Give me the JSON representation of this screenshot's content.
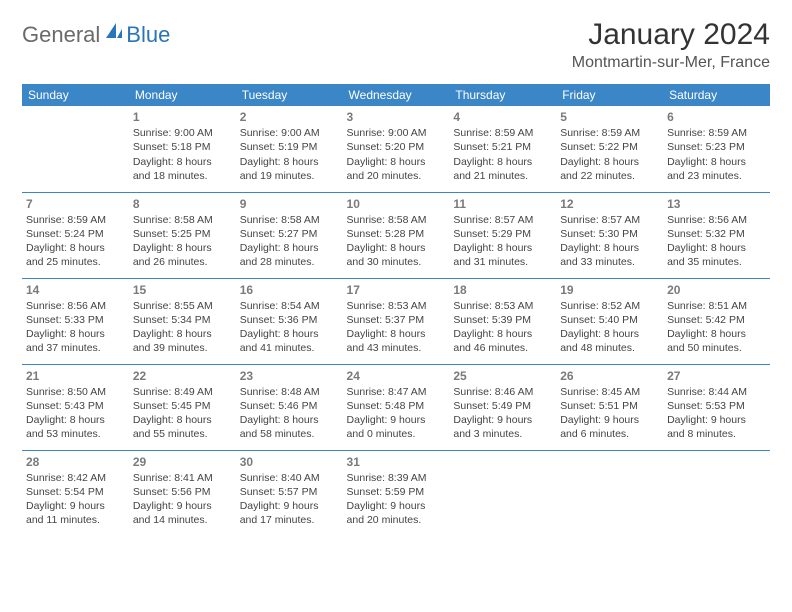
{
  "logo": {
    "general": "General",
    "blue": "Blue"
  },
  "title": "January 2024",
  "location": "Montmartin-sur-Mer, France",
  "colors": {
    "header_bg": "#3b86c6",
    "header_text": "#ffffff",
    "border": "#3b86c6",
    "daynum": "#7a7a7a",
    "body_text": "#444444",
    "logo_gray": "#6a6a6a",
    "logo_blue": "#2a74b8"
  },
  "day_headers": [
    "Sunday",
    "Monday",
    "Tuesday",
    "Wednesday",
    "Thursday",
    "Friday",
    "Saturday"
  ],
  "weeks": [
    [
      null,
      {
        "n": "1",
        "sr": "Sunrise: 9:00 AM",
        "ss": "Sunset: 5:18 PM",
        "d1": "Daylight: 8 hours",
        "d2": "and 18 minutes."
      },
      {
        "n": "2",
        "sr": "Sunrise: 9:00 AM",
        "ss": "Sunset: 5:19 PM",
        "d1": "Daylight: 8 hours",
        "d2": "and 19 minutes."
      },
      {
        "n": "3",
        "sr": "Sunrise: 9:00 AM",
        "ss": "Sunset: 5:20 PM",
        "d1": "Daylight: 8 hours",
        "d2": "and 20 minutes."
      },
      {
        "n": "4",
        "sr": "Sunrise: 8:59 AM",
        "ss": "Sunset: 5:21 PM",
        "d1": "Daylight: 8 hours",
        "d2": "and 21 minutes."
      },
      {
        "n": "5",
        "sr": "Sunrise: 8:59 AM",
        "ss": "Sunset: 5:22 PM",
        "d1": "Daylight: 8 hours",
        "d2": "and 22 minutes."
      },
      {
        "n": "6",
        "sr": "Sunrise: 8:59 AM",
        "ss": "Sunset: 5:23 PM",
        "d1": "Daylight: 8 hours",
        "d2": "and 23 minutes."
      }
    ],
    [
      {
        "n": "7",
        "sr": "Sunrise: 8:59 AM",
        "ss": "Sunset: 5:24 PM",
        "d1": "Daylight: 8 hours",
        "d2": "and 25 minutes."
      },
      {
        "n": "8",
        "sr": "Sunrise: 8:58 AM",
        "ss": "Sunset: 5:25 PM",
        "d1": "Daylight: 8 hours",
        "d2": "and 26 minutes."
      },
      {
        "n": "9",
        "sr": "Sunrise: 8:58 AM",
        "ss": "Sunset: 5:27 PM",
        "d1": "Daylight: 8 hours",
        "d2": "and 28 minutes."
      },
      {
        "n": "10",
        "sr": "Sunrise: 8:58 AM",
        "ss": "Sunset: 5:28 PM",
        "d1": "Daylight: 8 hours",
        "d2": "and 30 minutes."
      },
      {
        "n": "11",
        "sr": "Sunrise: 8:57 AM",
        "ss": "Sunset: 5:29 PM",
        "d1": "Daylight: 8 hours",
        "d2": "and 31 minutes."
      },
      {
        "n": "12",
        "sr": "Sunrise: 8:57 AM",
        "ss": "Sunset: 5:30 PM",
        "d1": "Daylight: 8 hours",
        "d2": "and 33 minutes."
      },
      {
        "n": "13",
        "sr": "Sunrise: 8:56 AM",
        "ss": "Sunset: 5:32 PM",
        "d1": "Daylight: 8 hours",
        "d2": "and 35 minutes."
      }
    ],
    [
      {
        "n": "14",
        "sr": "Sunrise: 8:56 AM",
        "ss": "Sunset: 5:33 PM",
        "d1": "Daylight: 8 hours",
        "d2": "and 37 minutes."
      },
      {
        "n": "15",
        "sr": "Sunrise: 8:55 AM",
        "ss": "Sunset: 5:34 PM",
        "d1": "Daylight: 8 hours",
        "d2": "and 39 minutes."
      },
      {
        "n": "16",
        "sr": "Sunrise: 8:54 AM",
        "ss": "Sunset: 5:36 PM",
        "d1": "Daylight: 8 hours",
        "d2": "and 41 minutes."
      },
      {
        "n": "17",
        "sr": "Sunrise: 8:53 AM",
        "ss": "Sunset: 5:37 PM",
        "d1": "Daylight: 8 hours",
        "d2": "and 43 minutes."
      },
      {
        "n": "18",
        "sr": "Sunrise: 8:53 AM",
        "ss": "Sunset: 5:39 PM",
        "d1": "Daylight: 8 hours",
        "d2": "and 46 minutes."
      },
      {
        "n": "19",
        "sr": "Sunrise: 8:52 AM",
        "ss": "Sunset: 5:40 PM",
        "d1": "Daylight: 8 hours",
        "d2": "and 48 minutes."
      },
      {
        "n": "20",
        "sr": "Sunrise: 8:51 AM",
        "ss": "Sunset: 5:42 PM",
        "d1": "Daylight: 8 hours",
        "d2": "and 50 minutes."
      }
    ],
    [
      {
        "n": "21",
        "sr": "Sunrise: 8:50 AM",
        "ss": "Sunset: 5:43 PM",
        "d1": "Daylight: 8 hours",
        "d2": "and 53 minutes."
      },
      {
        "n": "22",
        "sr": "Sunrise: 8:49 AM",
        "ss": "Sunset: 5:45 PM",
        "d1": "Daylight: 8 hours",
        "d2": "and 55 minutes."
      },
      {
        "n": "23",
        "sr": "Sunrise: 8:48 AM",
        "ss": "Sunset: 5:46 PM",
        "d1": "Daylight: 8 hours",
        "d2": "and 58 minutes."
      },
      {
        "n": "24",
        "sr": "Sunrise: 8:47 AM",
        "ss": "Sunset: 5:48 PM",
        "d1": "Daylight: 9 hours",
        "d2": "and 0 minutes."
      },
      {
        "n": "25",
        "sr": "Sunrise: 8:46 AM",
        "ss": "Sunset: 5:49 PM",
        "d1": "Daylight: 9 hours",
        "d2": "and 3 minutes."
      },
      {
        "n": "26",
        "sr": "Sunrise: 8:45 AM",
        "ss": "Sunset: 5:51 PM",
        "d1": "Daylight: 9 hours",
        "d2": "and 6 minutes."
      },
      {
        "n": "27",
        "sr": "Sunrise: 8:44 AM",
        "ss": "Sunset: 5:53 PM",
        "d1": "Daylight: 9 hours",
        "d2": "and 8 minutes."
      }
    ],
    [
      {
        "n": "28",
        "sr": "Sunrise: 8:42 AM",
        "ss": "Sunset: 5:54 PM",
        "d1": "Daylight: 9 hours",
        "d2": "and 11 minutes."
      },
      {
        "n": "29",
        "sr": "Sunrise: 8:41 AM",
        "ss": "Sunset: 5:56 PM",
        "d1": "Daylight: 9 hours",
        "d2": "and 14 minutes."
      },
      {
        "n": "30",
        "sr": "Sunrise: 8:40 AM",
        "ss": "Sunset: 5:57 PM",
        "d1": "Daylight: 9 hours",
        "d2": "and 17 minutes."
      },
      {
        "n": "31",
        "sr": "Sunrise: 8:39 AM",
        "ss": "Sunset: 5:59 PM",
        "d1": "Daylight: 9 hours",
        "d2": "and 20 minutes."
      },
      null,
      null,
      null
    ]
  ]
}
